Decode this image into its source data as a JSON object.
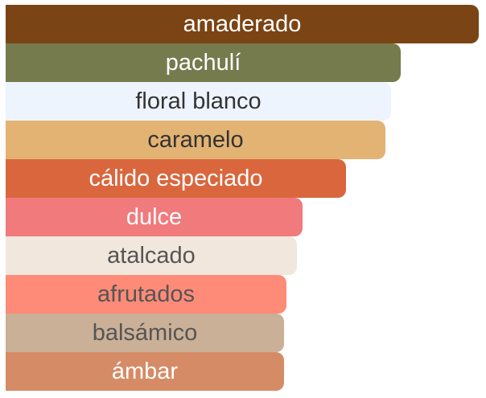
{
  "chart_data": {
    "type": "bar",
    "orientation": "horizontal",
    "categories": [
      "amaderado",
      "pachulí",
      "floral blanco",
      "caramelo",
      "cálido especiado",
      "dulce",
      "atalcado",
      "afrutados",
      "balsámico",
      "ámbar"
    ],
    "values": [
      100,
      83.5,
      81.4,
      80.3,
      71.9,
      62.7,
      61.6,
      59.4,
      58.9,
      58.9
    ],
    "colors": [
      "#7b4414",
      "#767b4e",
      "#eef4fd",
      "#e3b374",
      "#da663d",
      "#f07a7c",
      "#f1e7dc",
      "#fe8b77",
      "#cab097",
      "#d58b65"
    ],
    "text_colors": [
      "#ffffff",
      "#ffffff",
      "#333333",
      "#333333",
      "#ffffff",
      "#ffffff",
      "#555555",
      "#555555",
      "#555555",
      "#ffffff"
    ],
    "xlim": [
      0,
      100
    ]
  }
}
